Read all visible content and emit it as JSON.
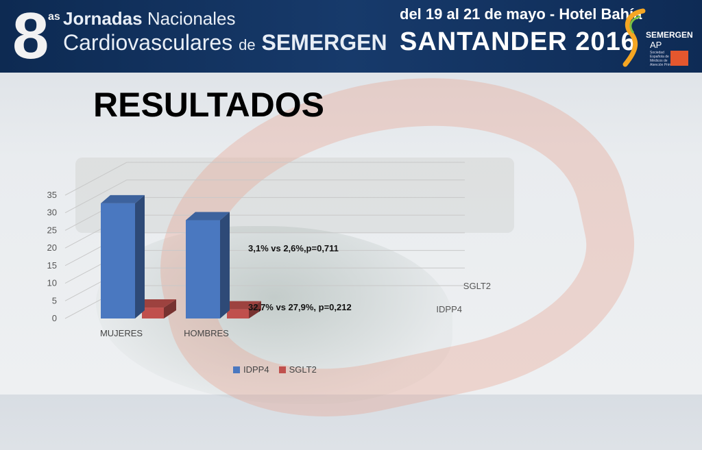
{
  "header": {
    "edition_number": "8",
    "edition_suffix": "as",
    "title_line1_bold": "Jornadas",
    "title_line1_rest": "Nacionales",
    "title_line2_main": "Cardiovasculares",
    "title_line2_de": "de",
    "title_line2_org": "SEMERGEN",
    "event_date": "del 19 al 21 de mayo - Hotel Bahía",
    "event_city": "SANTANDER 2016",
    "logo_name": "SEMERGEN",
    "logo_ap": "AP",
    "logo_subtitle": "Sociedad Española de Médicos de Atención Primaria"
  },
  "slide": {
    "title": "RESULTADOS"
  },
  "annotations": {
    "sglt2_note": "3,1% vs 2,6%,p=0,711",
    "idpp4_note": "32,7% vs 27,9%, p=0,212"
  },
  "colors": {
    "idpp4": "#4a78c0",
    "sglt2": "#c0504d",
    "header_bg": "#173a6b",
    "logo_accent": "#e4572e"
  },
  "chart_data": {
    "type": "bar",
    "style": "3d-clustered",
    "categories": [
      "MUJERES",
      "HOMBRES"
    ],
    "series": [
      {
        "name": "IDPP4",
        "values": [
          32.7,
          27.9
        ]
      },
      {
        "name": "SGLT2",
        "values": [
          3.1,
          2.6
        ]
      }
    ],
    "depth_axis_labels": [
      "SGLT2",
      "IDPP4"
    ],
    "yticks": [
      "0",
      "5",
      "10",
      "15",
      "20",
      "25",
      "30",
      "35"
    ],
    "ylim": [
      0,
      35
    ],
    "grid": true,
    "legend_position": "bottom"
  }
}
